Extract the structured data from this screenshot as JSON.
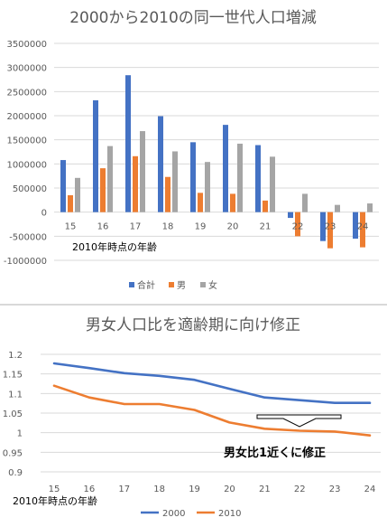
{
  "colors": {
    "total": "#4472c4",
    "male": "#ed7d31",
    "female": "#a5a5a5",
    "line2000": "#4472c4",
    "line2010": "#ed7d31",
    "grid": "#d9d9d9",
    "text": "#595959"
  },
  "chart_data": [
    {
      "type": "bar",
      "title": "2000から2010の同一世代人口増減",
      "xlabel": "2010年時点の年齢",
      "ylabel": "",
      "categories": [
        "15",
        "16",
        "17",
        "18",
        "19",
        "20",
        "21",
        "22",
        "23",
        "24"
      ],
      "ylim": [
        -1000000,
        3500000
      ],
      "yticks": [
        "-1000000",
        "-500000",
        "0",
        "500000",
        "1000000",
        "1500000",
        "2000000",
        "2500000",
        "3000000",
        "3500000"
      ],
      "grid": true,
      "legend_position": "bottom",
      "series": [
        {
          "name": "合計",
          "values": [
            1080000,
            2320000,
            2840000,
            1990000,
            1450000,
            1810000,
            1390000,
            -120000,
            -600000,
            -550000
          ]
        },
        {
          "name": "男",
          "values": [
            350000,
            910000,
            1160000,
            730000,
            400000,
            380000,
            240000,
            -500000,
            -750000,
            -730000
          ]
        },
        {
          "name": "女",
          "values": [
            710000,
            1370000,
            1680000,
            1260000,
            1040000,
            1420000,
            1150000,
            380000,
            150000,
            180000
          ]
        }
      ]
    },
    {
      "type": "line",
      "title": "男女人口比を適齢期に向け修正",
      "xlabel": "2010年時点の年齢",
      "ylabel": "",
      "categories": [
        "15",
        "16",
        "17",
        "18",
        "19",
        "20",
        "21",
        "22",
        "23",
        "24"
      ],
      "ylim": [
        0.9,
        1.2
      ],
      "yticks": [
        "0.9",
        "0.95",
        "1",
        "1.05",
        "1.1",
        "1.15",
        "1.2"
      ],
      "grid": true,
      "legend_position": "bottom",
      "annotation": "男女比1近くに修正",
      "series": [
        {
          "name": "2000",
          "values": [
            1.177,
            1.165,
            1.152,
            1.145,
            1.135,
            1.112,
            1.09,
            1.083,
            1.076,
            1.076
          ]
        },
        {
          "name": "2010",
          "values": [
            1.12,
            1.09,
            1.073,
            1.073,
            1.058,
            1.026,
            1.01,
            1.005,
            1.003,
            0.993
          ]
        }
      ]
    }
  ]
}
